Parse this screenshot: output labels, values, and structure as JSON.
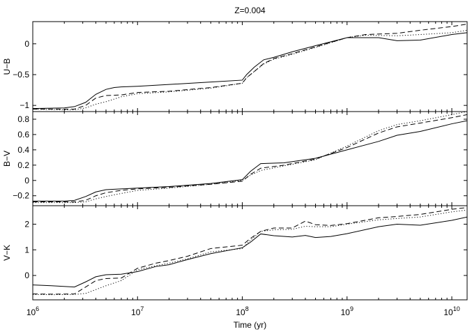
{
  "chart_data": {
    "type": "line",
    "title": "Z=0.004",
    "xlabel": "Time (yr)",
    "x_scale": "log",
    "xlim": [
      1000000,
      14000000000
    ],
    "x_ticks": [
      {
        "value": 1000000,
        "base": "10",
        "exp": "6"
      },
      {
        "value": 10000000,
        "base": "10",
        "exp": "7"
      },
      {
        "value": 100000000,
        "base": "10",
        "exp": "8"
      },
      {
        "value": 1000000000,
        "base": "10",
        "exp": "9"
      },
      {
        "value": 10000000000,
        "base": "10",
        "exp": "10"
      }
    ],
    "grid": false,
    "panels": [
      {
        "ylabel": "U−B",
        "ylim": [
          -1.1,
          0.36
        ],
        "y_ticks": [
          -1,
          -0.5,
          0
        ],
        "y_tick_labels": [
          "−1",
          "−0.5",
          "0"
        ],
        "series": [
          {
            "style": "solid",
            "x": [
              1000000,
              2000000,
              2500000,
              3200000,
              4000000,
              5000000,
              6000000,
              7000000,
              10000000,
              20000000,
              50000000,
              100000000,
              110000000,
              130000000,
              160000000,
              200000000,
              300000000,
              500000000,
              1000000000,
              2000000000,
              3000000000,
              5000000000,
              10000000000,
              14000000000
            ],
            "y": [
              -1.05,
              -1.04,
              -1.02,
              -0.95,
              -0.82,
              -0.74,
              -0.71,
              -0.7,
              -0.69,
              -0.66,
              -0.62,
              -0.59,
              -0.5,
              -0.38,
              -0.26,
              -0.22,
              -0.13,
              -0.03,
              0.1,
              0.1,
              0.05,
              0.06,
              0.15,
              0.18
            ]
          },
          {
            "style": "dashed",
            "x": [
              1000000,
              2000000,
              2500000,
              3200000,
              4000000,
              5000000,
              7000000,
              10000000,
              20000000,
              50000000,
              100000000,
              110000000,
              130000000,
              160000000,
              200000000,
              300000000,
              500000000,
              1000000000,
              1500000000,
              3000000000,
              5000000000,
              10000000000,
              14000000000
            ],
            "y": [
              -1.06,
              -1.06,
              -1.06,
              -1.0,
              -0.88,
              -0.84,
              -0.83,
              -0.79,
              -0.77,
              -0.71,
              -0.64,
              -0.55,
              -0.45,
              -0.32,
              -0.24,
              -0.16,
              -0.05,
              0.1,
              0.15,
              0.17,
              0.22,
              0.28,
              0.32
            ]
          },
          {
            "style": "dotted",
            "x": [
              1000000,
              2000000,
              2500000,
              3200000,
              4000000,
              5000000,
              7000000,
              10000000,
              20000000,
              50000000,
              100000000,
              110000000,
              130000000,
              160000000,
              200000000,
              300000000,
              500000000,
              1000000000,
              1500000000,
              3000000000,
              5000000000,
              10000000000,
              14000000000
            ],
            "y": [
              -1.06,
              -1.07,
              -1.07,
              -1.04,
              -0.98,
              -0.94,
              -0.86,
              -0.81,
              -0.78,
              -0.72,
              -0.64,
              -0.55,
              -0.45,
              -0.33,
              -0.25,
              -0.17,
              -0.06,
              0.1,
              0.14,
              0.13,
              0.15,
              0.18,
              0.22
            ]
          }
        ]
      },
      {
        "ylabel": "B−V",
        "ylim": [
          -0.33,
          0.9
        ],
        "y_ticks": [
          -0.2,
          0,
          0.2,
          0.4,
          0.6,
          0.8
        ],
        "y_tick_labels": [
          "−0.2",
          "0",
          "0.2",
          "0.4",
          "0.6",
          "0.8"
        ],
        "series": [
          {
            "style": "solid",
            "x": [
              1000000,
              2000000,
              2500000,
              3200000,
              4000000,
              5000000,
              7000000,
              10000000,
              20000000,
              50000000,
              100000000,
              120000000,
              150000000,
              250000000,
              500000000,
              1000000000,
              2000000000,
              3000000000,
              5000000000,
              10000000000,
              14000000000
            ],
            "y": [
              -0.27,
              -0.27,
              -0.26,
              -0.21,
              -0.15,
              -0.12,
              -0.11,
              -0.1,
              -0.08,
              -0.04,
              0.01,
              0.12,
              0.22,
              0.23,
              0.29,
              0.4,
              0.51,
              0.59,
              0.64,
              0.74,
              0.78
            ]
          },
          {
            "style": "dashed",
            "x": [
              1000000,
              2000000,
              2500000,
              3200000,
              4000000,
              5000000,
              7000000,
              10000000,
              20000000,
              50000000,
              100000000,
              120000000,
              150000000,
              250000000,
              500000000,
              1000000000,
              2000000000,
              3000000000,
              5000000000,
              10000000000,
              14000000000
            ],
            "y": [
              -0.28,
              -0.28,
              -0.28,
              -0.26,
              -0.2,
              -0.16,
              -0.13,
              -0.11,
              -0.09,
              -0.05,
              -0.01,
              0.08,
              0.16,
              0.2,
              0.28,
              0.43,
              0.62,
              0.7,
              0.75,
              0.82,
              0.86
            ]
          },
          {
            "style": "dotted",
            "x": [
              1000000,
              2000000,
              2500000,
              3200000,
              4000000,
              5000000,
              7000000,
              10000000,
              20000000,
              50000000,
              100000000,
              120000000,
              150000000,
              250000000,
              500000000,
              1000000000,
              2000000000,
              3000000000,
              5000000000,
              10000000000,
              14000000000
            ],
            "y": [
              -0.29,
              -0.29,
              -0.29,
              -0.28,
              -0.24,
              -0.21,
              -0.17,
              -0.13,
              -0.1,
              -0.05,
              0.0,
              0.07,
              0.13,
              0.19,
              0.27,
              0.45,
              0.65,
              0.73,
              0.78,
              0.86,
              0.9
            ]
          }
        ]
      },
      {
        "ylabel": "V−K",
        "ylim": [
          -0.95,
          2.72
        ],
        "y_ticks": [
          0,
          1,
          2
        ],
        "y_tick_labels": [
          "0",
          "1",
          "2"
        ],
        "series": [
          {
            "style": "solid",
            "x": [
              1000000,
              1500000,
              2500000,
              3200000,
              4000000,
              5000000,
              7000000,
              10000000,
              15000000,
              20000000,
              30000000,
              50000000,
              100000000,
              120000000,
              150000000,
              200000000,
              300000000,
              400000000,
              500000000,
              700000000,
              1000000000,
              2000000000,
              3000000000,
              5000000000,
              10000000000,
              14000000000
            ],
            "y": [
              -0.37,
              -0.4,
              -0.45,
              -0.25,
              -0.05,
              0.03,
              0.05,
              0.15,
              0.35,
              0.42,
              0.62,
              0.85,
              1.08,
              1.3,
              1.62,
              1.55,
              1.5,
              1.56,
              1.48,
              1.52,
              1.63,
              1.9,
              2.0,
              1.96,
              2.15,
              2.28
            ]
          },
          {
            "style": "dashed",
            "x": [
              1000000,
              1500000,
              2500000,
              3200000,
              4000000,
              5000000,
              7000000,
              10000000,
              15000000,
              20000000,
              30000000,
              50000000,
              100000000,
              120000000,
              150000000,
              200000000,
              300000000,
              400000000,
              500000000,
              700000000,
              1000000000,
              2000000000,
              3000000000,
              5000000000,
              10000000000,
              14000000000
            ],
            "y": [
              -0.72,
              -0.73,
              -0.72,
              -0.45,
              -0.2,
              -0.12,
              -0.1,
              0.28,
              0.48,
              0.58,
              0.75,
              1.05,
              1.18,
              1.45,
              1.72,
              1.85,
              1.85,
              2.12,
              1.98,
              1.95,
              2.02,
              2.25,
              2.3,
              2.38,
              2.58,
              2.65
            ]
          },
          {
            "style": "dotted",
            "x": [
              1000000,
              1500000,
              2500000,
              3200000,
              4000000,
              5000000,
              7000000,
              10000000,
              15000000,
              20000000,
              30000000,
              50000000,
              100000000,
              120000000,
              150000000,
              200000000,
              300000000,
              400000000,
              500000000,
              700000000,
              1000000000,
              2000000000,
              3000000000,
              5000000000,
              10000000000,
              14000000000
            ],
            "y": [
              -0.74,
              -0.75,
              -0.74,
              -0.7,
              -0.55,
              -0.4,
              -0.2,
              0.22,
              0.38,
              0.48,
              0.65,
              0.92,
              1.05,
              1.38,
              1.72,
              1.78,
              1.8,
              1.92,
              1.9,
              1.9,
              2.0,
              2.17,
              2.22,
              2.28,
              2.48,
              2.55
            ]
          }
        ]
      }
    ]
  }
}
